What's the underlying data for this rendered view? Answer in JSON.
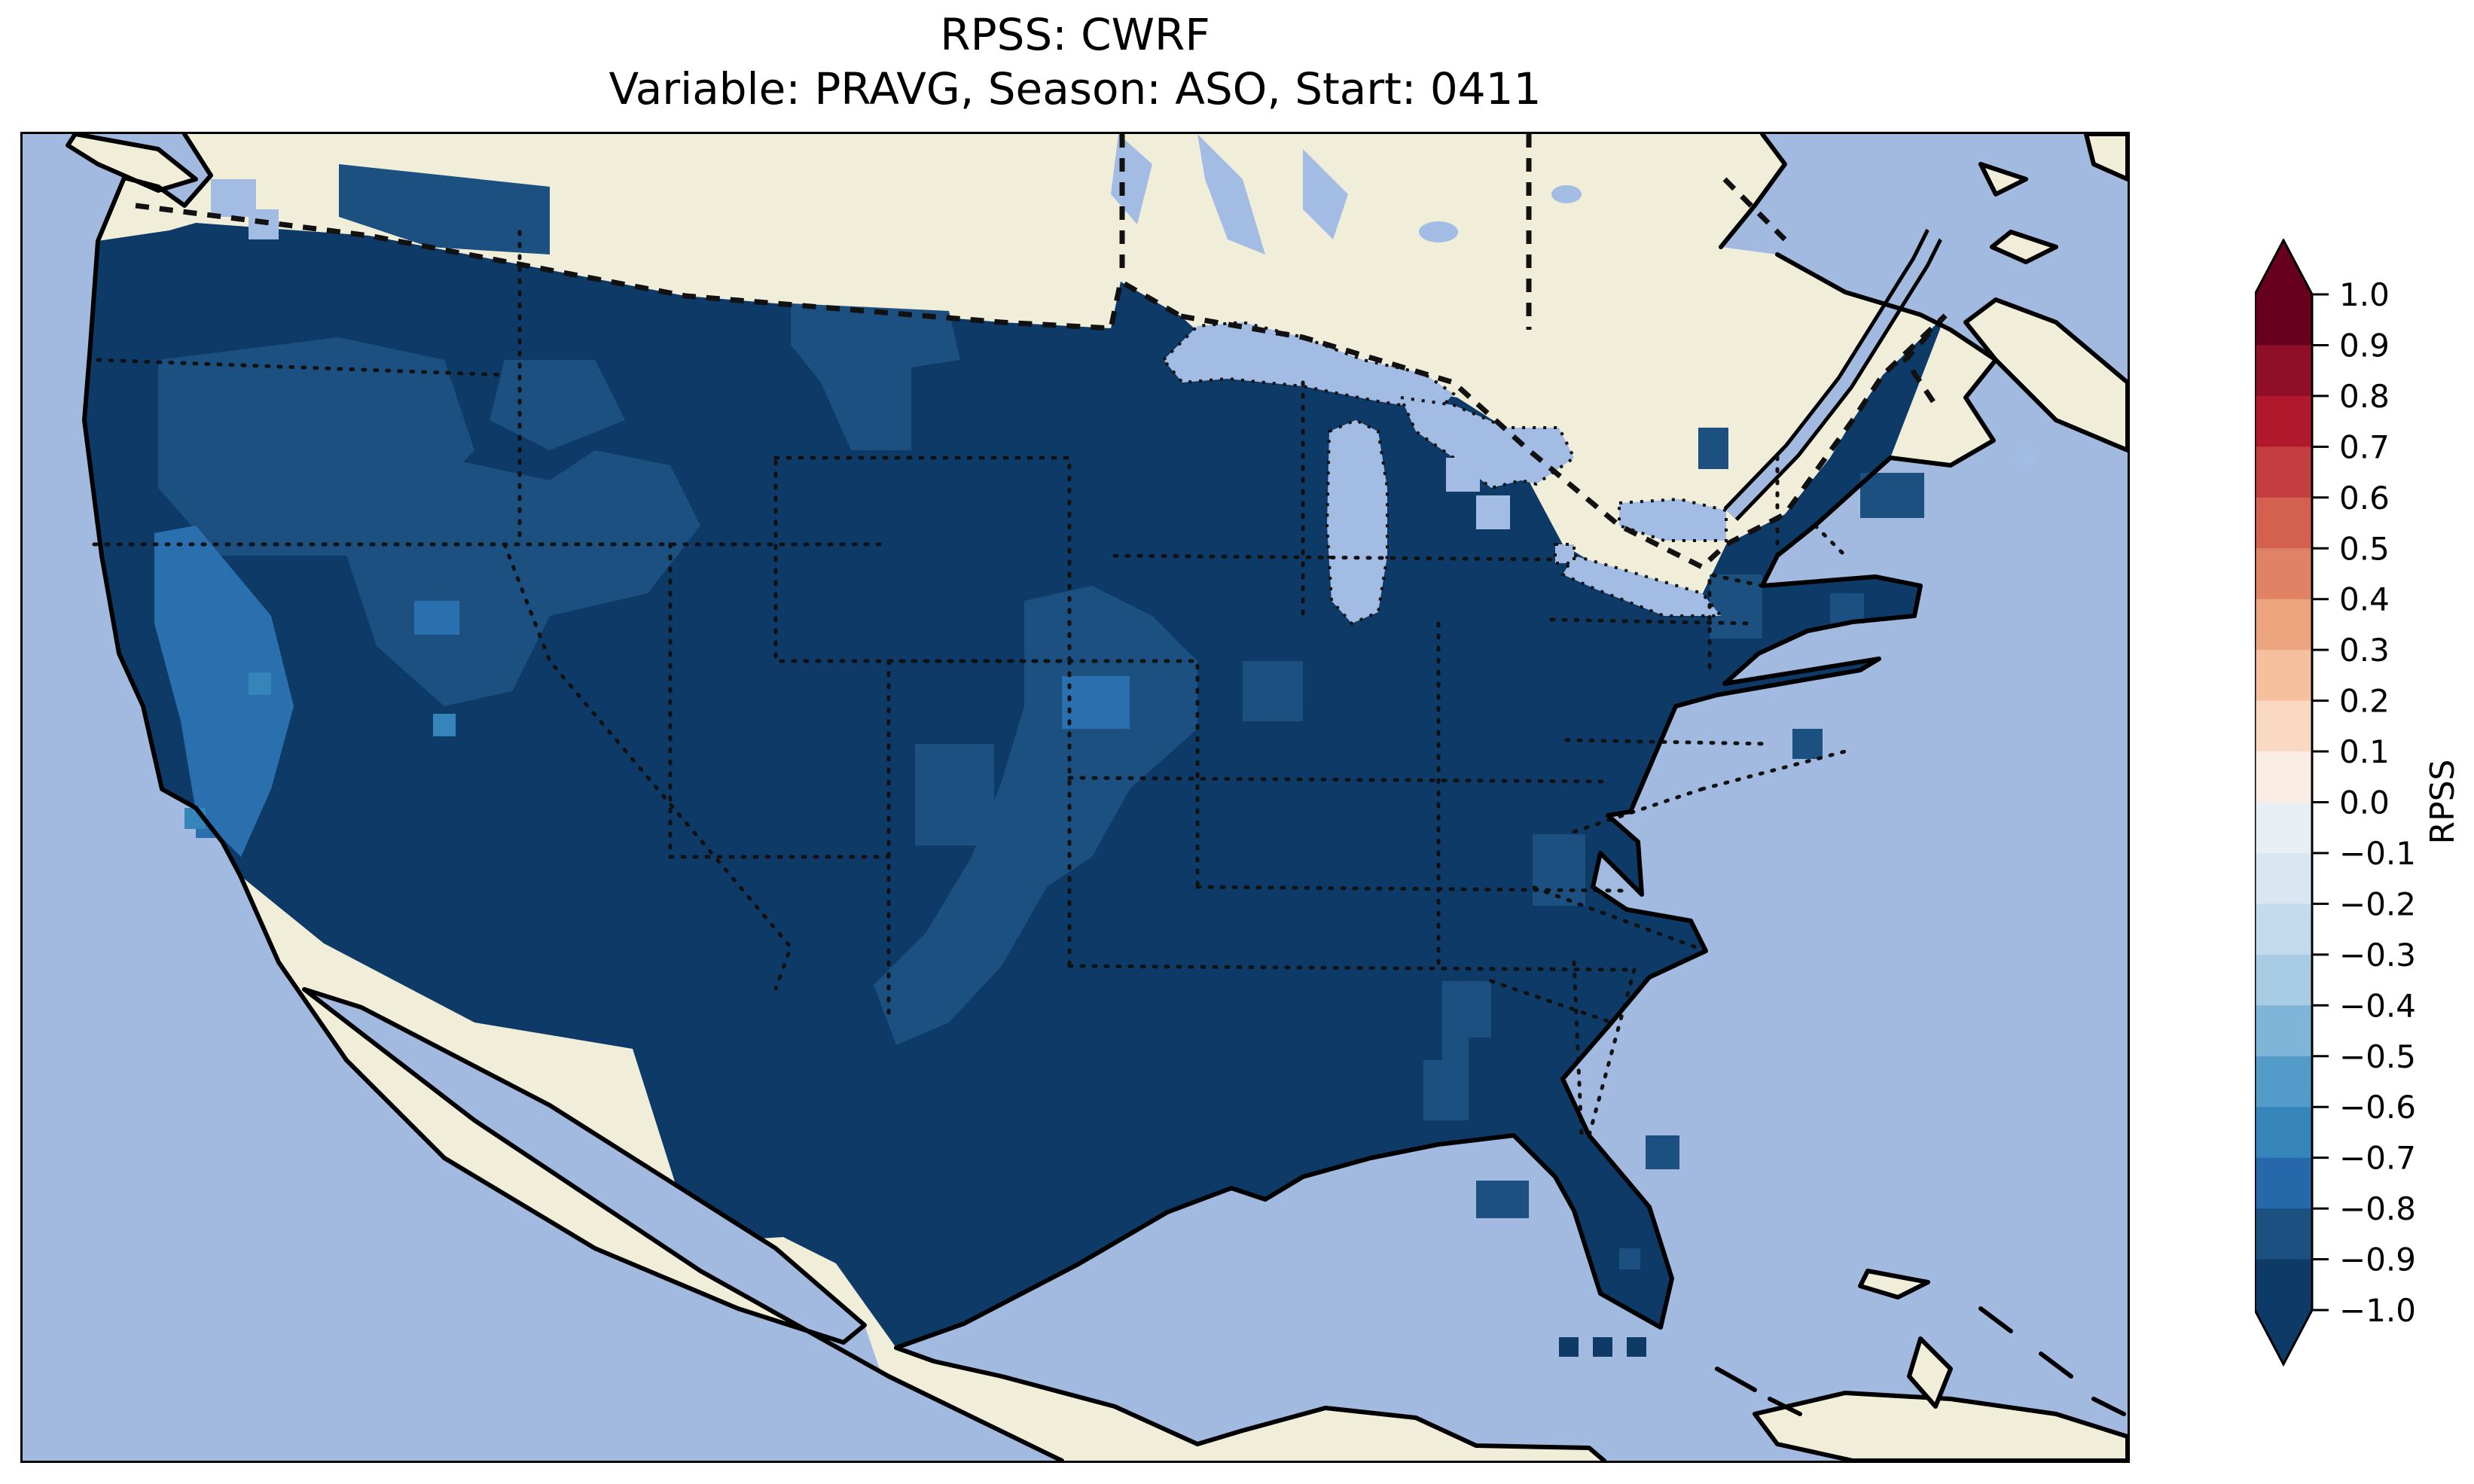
{
  "title": {
    "line1": "RPSS: CWRF",
    "line2": "Variable: PRAVG, Season: ASO, Start: 0411"
  },
  "colorbar": {
    "label": "RPSS",
    "tick_labels": [
      "1.0",
      "0.9",
      "0.8",
      "0.7",
      "0.6",
      "0.5",
      "0.4",
      "0.3",
      "0.2",
      "0.1",
      "0.0",
      "−0.1",
      "−0.2",
      "−0.3",
      "−0.4",
      "−0.5",
      "−0.6",
      "−0.7",
      "−0.8",
      "−0.9",
      "−1.0"
    ],
    "colors_top_to_bottom": [
      "#67001f",
      "#8e0f27",
      "#b2182b",
      "#c43d41",
      "#d4604f",
      "#e08265",
      "#eda57f",
      "#f6c09e",
      "#fad9c2",
      "#f9ece2",
      "#e8eff4",
      "#d8e7f1",
      "#c3dced",
      "#a7cce4",
      "#7fb5d9",
      "#539bc9",
      "#3585bb",
      "#2569aa",
      "#1b5080",
      "#0e3a68"
    ],
    "over_arrow_color": "#67001f",
    "under_arrow_color": "#0e3a68"
  },
  "map": {
    "colors": {
      "ocean": "#a2b9e0",
      "lake": "#a3bce3",
      "land": "#f0eed9",
      "coastline": "#000000",
      "navy_bin_-1.0_-0.9": "#0e3a68",
      "med_bin_-0.9_-0.8": "#1b5080",
      "light_bin_-0.8_-0.7": "#2a6fae",
      "lighter_bin_-0.7_-0.6": "#3585bb"
    }
  },
  "chart_data": {
    "type": "heatmap",
    "title": "RPSS: CWRF",
    "subtitle": "Variable: PRAVG, Season: ASO, Start: 0411",
    "model": "CWRF",
    "variable": "PRAVG",
    "season": "ASO",
    "start": "0411",
    "metric": "RPSS",
    "colorbar": {
      "label": "RPSS",
      "min": -1.0,
      "max": 1.0,
      "bin_width": 0.1,
      "n_bins": 20,
      "extend": "both",
      "colormap": "RdBu_r",
      "tick_values": [
        1.0,
        0.9,
        0.8,
        0.7,
        0.6,
        0.5,
        0.4,
        0.3,
        0.2,
        0.1,
        0.0,
        -0.1,
        -0.2,
        -0.3,
        -0.4,
        -0.5,
        -0.6,
        -0.7,
        -0.8,
        -0.9,
        -1.0
      ],
      "legend_position": "right"
    },
    "map_extent": "Continental United States with surrounding Canada, Mexico, Gulf of Mexico and Caribbean",
    "summary_regions": [
      {
        "region": "Most of CONUS (dominant)",
        "rpss_bin": "-1.0 to -0.9"
      },
      {
        "region": "Western Oregon / Washington interior",
        "rpss_bin": "-0.9 to -0.8"
      },
      {
        "region": "Great Basin: Nevada, western Utah, southern Idaho",
        "rpss_bin": "-0.9 to -0.8"
      },
      {
        "region": "Sierra Nevada / California Central Valley strip",
        "rpss_bin": "-0.8 to -0.6"
      },
      {
        "region": "Eastern Montana / western North Dakota",
        "rpss_bin": "-0.9 to -0.8"
      },
      {
        "region": "Nebraska - Kansas - Missouri - Oklahoma corridor",
        "rpss_bin": "-0.9 to -0.8"
      },
      {
        "region": "Central Georgia strip; NC/VA border cell; eastern Pennsylvania; coastal New England cells; scattered Florida cells",
        "rpss_bin": "-0.9 to -0.8"
      },
      {
        "region": "Three grid cells at Florida Keys",
        "rpss_bin": "-1.0 to -0.9"
      },
      {
        "region": "Great Lakes, oceans, non-US land",
        "rpss_bin": "masked / no data"
      }
    ]
  }
}
